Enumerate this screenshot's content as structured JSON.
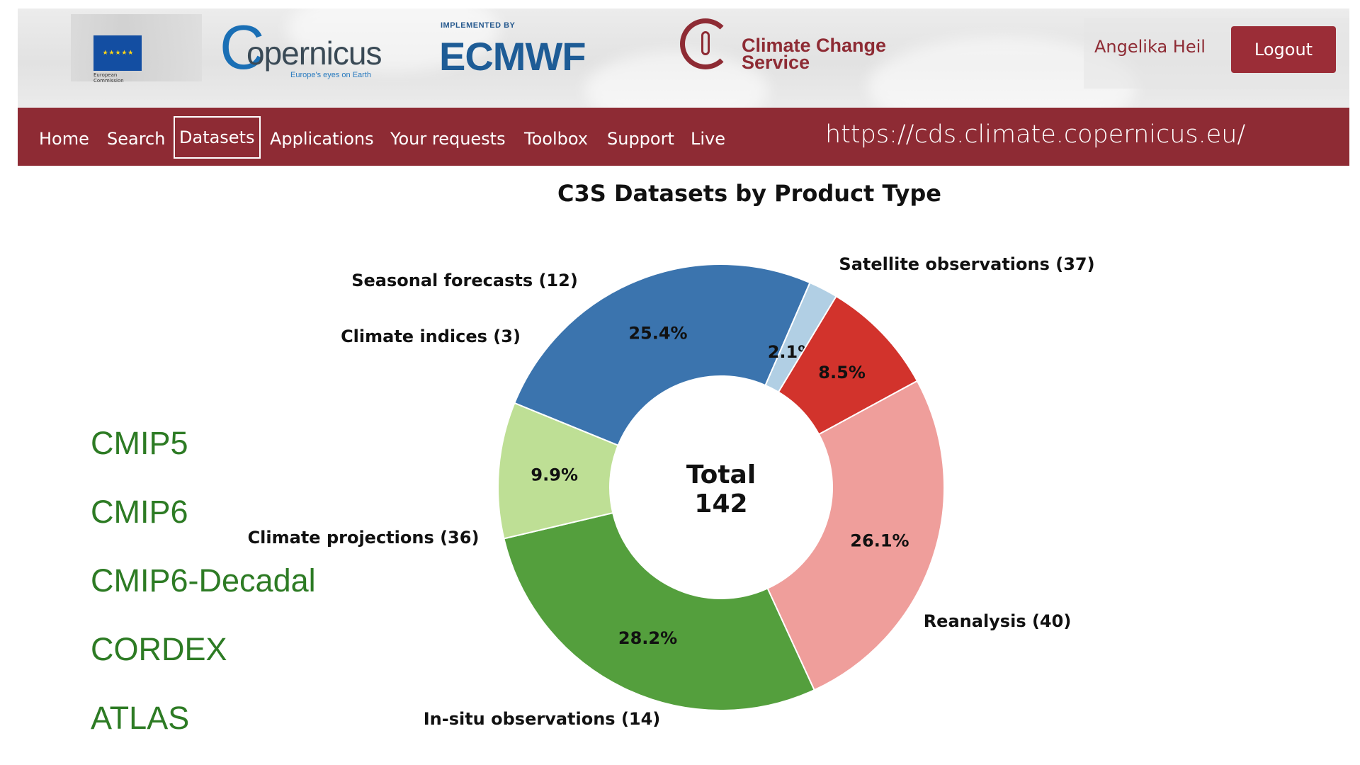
{
  "header": {
    "eu_logo_text": "European Commission",
    "copernicus_logo": {
      "word": "opernicus",
      "letter": "C",
      "tagline": "Europe's eyes on Earth"
    },
    "ecmwf_logo": {
      "implemented_by": "IMPLEMENTED BY",
      "mark": "ECMWF"
    },
    "c3s_logo": {
      "line1": "Climate Change",
      "line2": "Service"
    },
    "user_name": "Angelika Heil",
    "logout_label": "Logout"
  },
  "nav": {
    "items": [
      {
        "label": "Home",
        "active": false
      },
      {
        "label": "Search",
        "active": false
      },
      {
        "label": "Datasets",
        "active": true
      },
      {
        "label": "Applications",
        "active": false
      },
      {
        "label": "Your requests",
        "active": false
      },
      {
        "label": "Toolbox",
        "active": false
      },
      {
        "label": "Support",
        "active": false
      },
      {
        "label": "Live",
        "active": false
      }
    ],
    "url": "https://cds.climate.copernicus.eu/"
  },
  "side_list": [
    "CMIP5",
    "CMIP6",
    "CMIP6-Decadal",
    "CORDEX",
    "ATLAS"
  ],
  "colors": {
    "nav_bg": "#8e2b34",
    "side_text": "#2d7b24"
  },
  "chart_data": {
    "type": "pie",
    "style": "donut",
    "title": "C3S Datasets by Product Type",
    "center_label": "Total",
    "center_value": "142",
    "start_angle_deg": -28.5,
    "direction": "clockwise",
    "slices": [
      {
        "label": "Satellite observations (37)",
        "name": "Satellite observations",
        "value": 37,
        "pct": "26.1%",
        "color": "#ef9e9b"
      },
      {
        "label": "Reanalysis (40)",
        "name": "Reanalysis",
        "value": 40,
        "pct": "28.2%",
        "color": "#549f3d"
      },
      {
        "label": "In-situ observations (14)",
        "name": "In-situ observations",
        "value": 14,
        "pct": "9.9%",
        "color": "#bedf95"
      },
      {
        "label": "Climate projections (36)",
        "name": "Climate projections",
        "value": 36,
        "pct": "25.4%",
        "color": "#3b74ae"
      },
      {
        "label": "Climate indices (3)",
        "name": "Climate indices",
        "value": 3,
        "pct": "2.1%",
        "color": "#b1cfe4"
      },
      {
        "label": "Seasonal forecasts (12)",
        "name": "Seasonal forecasts",
        "value": 12,
        "pct": "8.5%",
        "color": "#d2332c"
      }
    ]
  }
}
